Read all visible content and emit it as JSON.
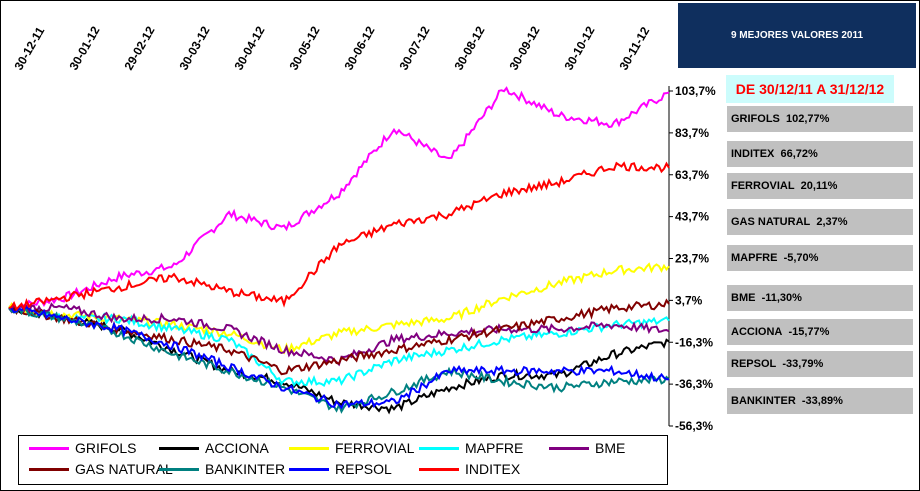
{
  "title": "9 MEJORES VALORES 2011",
  "range": "DE  30/12/11  A  31/12/12",
  "results": [
    {
      "name": "GRIFOLS",
      "value": "102,77%"
    },
    {
      "name": "INDITEX",
      "value": "66,72%"
    },
    {
      "name": "FERROVIAL",
      "value": "20,11%"
    },
    {
      "name": "GAS NATURAL",
      "value": "2,37%"
    },
    {
      "name": "MAPFRE",
      "value": "-5,70%"
    },
    {
      "name": "BME",
      "value": "-11,30%"
    },
    {
      "name": "ACCIONA",
      "value": "-15,77%"
    },
    {
      "name": "REPSOL",
      "value": "-33,79%"
    },
    {
      "name": "BANKINTER",
      "value": "-33,89%"
    }
  ],
  "chart_data": {
    "type": "line",
    "x": [
      "30-12-11",
      "30-01-12",
      "29-02-12",
      "30-03-12",
      "30-04-12",
      "30-05-12",
      "30-06-12",
      "30-07-12",
      "30-08-12",
      "30-09-12",
      "30-10-12",
      "30-11-12",
      "31-12-12"
    ],
    "xtick_labels": [
      "30-12-11",
      "30-01-12",
      "29-02-12",
      "30-03-12",
      "30-04-12",
      "30-05-12",
      "30-06-12",
      "30-07-12",
      "30-08-12",
      "30-09-12",
      "30-10-12",
      "30-11-12"
    ],
    "yticks": [
      "103,7%",
      "83,7%",
      "63,7%",
      "43,7%",
      "23,7%",
      "3,7%",
      "-16,3%",
      "-36,3%",
      "-56,3%"
    ],
    "ylim": [
      -56.3,
      103.7
    ],
    "ylabel": "",
    "xlabel": "",
    "legend_position": "bottom",
    "series": [
      {
        "name": "GRIFOLS",
        "color": "#ff00ff",
        "values": [
          0,
          5,
          15,
          20,
          45,
          38,
          55,
          86,
          70,
          105,
          92,
          88,
          103
        ]
      },
      {
        "name": "ACCIONA",
        "color": "#000000",
        "values": [
          0,
          -5,
          -10,
          -20,
          -30,
          -35,
          -45,
          -48,
          -38,
          -32,
          -32,
          -22,
          -16
        ]
      },
      {
        "name": "FERROVIAL",
        "color": "#ffff00",
        "values": [
          0,
          -3,
          -5,
          -8,
          -12,
          -20,
          -12,
          -8,
          -5,
          5,
          12,
          18,
          20
        ]
      },
      {
        "name": "MAPFRE",
        "color": "#00ffff",
        "values": [
          0,
          -5,
          -5,
          -10,
          -15,
          -35,
          -35,
          -25,
          -20,
          -15,
          -12,
          -8,
          -6
        ]
      },
      {
        "name": "BME",
        "color": "#800080",
        "values": [
          0,
          0,
          -5,
          -5,
          -10,
          -20,
          -25,
          -15,
          -12,
          -10,
          -10,
          -8,
          -11
        ]
      },
      {
        "name": "GAS NATURAL",
        "color": "#800000",
        "values": [
          0,
          -5,
          -10,
          -15,
          -20,
          -30,
          -25,
          -20,
          -15,
          -10,
          -5,
          0,
          2
        ]
      },
      {
        "name": "BANKINTER",
        "color": "#008080",
        "values": [
          0,
          -5,
          -12,
          -22,
          -30,
          -38,
          -48,
          -40,
          -30,
          -35,
          -38,
          -35,
          -34
        ]
      },
      {
        "name": "REPSOL",
        "color": "#0000ff",
        "values": [
          0,
          -5,
          -10,
          -18,
          -28,
          -38,
          -46,
          -45,
          -30,
          -30,
          -30,
          -30,
          -34
        ]
      },
      {
        "name": "INDITEX",
        "color": "#ff0000",
        "values": [
          0,
          5,
          10,
          15,
          8,
          3,
          30,
          40,
          45,
          55,
          60,
          68,
          67
        ]
      }
    ]
  }
}
